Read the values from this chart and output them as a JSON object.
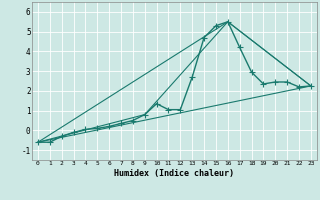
{
  "xlabel": "Humidex (Indice chaleur)",
  "ylabel": "",
  "background_color": "#cde8e4",
  "grid_color": "#ffffff",
  "line_color": "#1a7a6e",
  "xlim": [
    -0.5,
    23.5
  ],
  "ylim": [
    -1.5,
    6.5
  ],
  "xtick_labels": [
    "0",
    "1",
    "2",
    "3",
    "4",
    "5",
    "6",
    "7",
    "8",
    "9",
    "10",
    "11",
    "12",
    "13",
    "14",
    "15",
    "16",
    "17",
    "18",
    "19",
    "20",
    "21",
    "22",
    "23"
  ],
  "xtick_vals": [
    0,
    1,
    2,
    3,
    4,
    5,
    6,
    7,
    8,
    9,
    10,
    11,
    12,
    13,
    14,
    15,
    16,
    17,
    18,
    19,
    20,
    21,
    22,
    23
  ],
  "yticks": [
    -1,
    0,
    1,
    2,
    3,
    4,
    5,
    6
  ],
  "series": [
    {
      "x": [
        0,
        1,
        2,
        3,
        4,
        5,
        6,
        7,
        8,
        9,
        10,
        11,
        12,
        13,
        14,
        15,
        16,
        17,
        18,
        19,
        20,
        21,
        22,
        23
      ],
      "y": [
        -0.6,
        -0.6,
        -0.3,
        -0.1,
        0.05,
        0.1,
        0.2,
        0.35,
        0.5,
        0.8,
        1.35,
        1.05,
        1.05,
        2.7,
        4.7,
        5.3,
        5.5,
        4.2,
        2.95,
        2.35,
        2.45,
        2.45,
        2.2,
        2.25
      ],
      "marker": "+",
      "markersize": 4,
      "linewidth": 1.0,
      "with_markers": true
    },
    {
      "x": [
        0,
        23
      ],
      "y": [
        -0.6,
        2.25
      ],
      "marker": null,
      "linewidth": 0.8,
      "with_markers": false
    },
    {
      "x": [
        0,
        9,
        16,
        23
      ],
      "y": [
        -0.6,
        0.8,
        5.5,
        2.25
      ],
      "marker": null,
      "linewidth": 0.8,
      "with_markers": false
    },
    {
      "x": [
        0,
        16,
        23
      ],
      "y": [
        -0.6,
        5.5,
        2.25
      ],
      "marker": null,
      "linewidth": 0.8,
      "with_markers": false
    }
  ]
}
